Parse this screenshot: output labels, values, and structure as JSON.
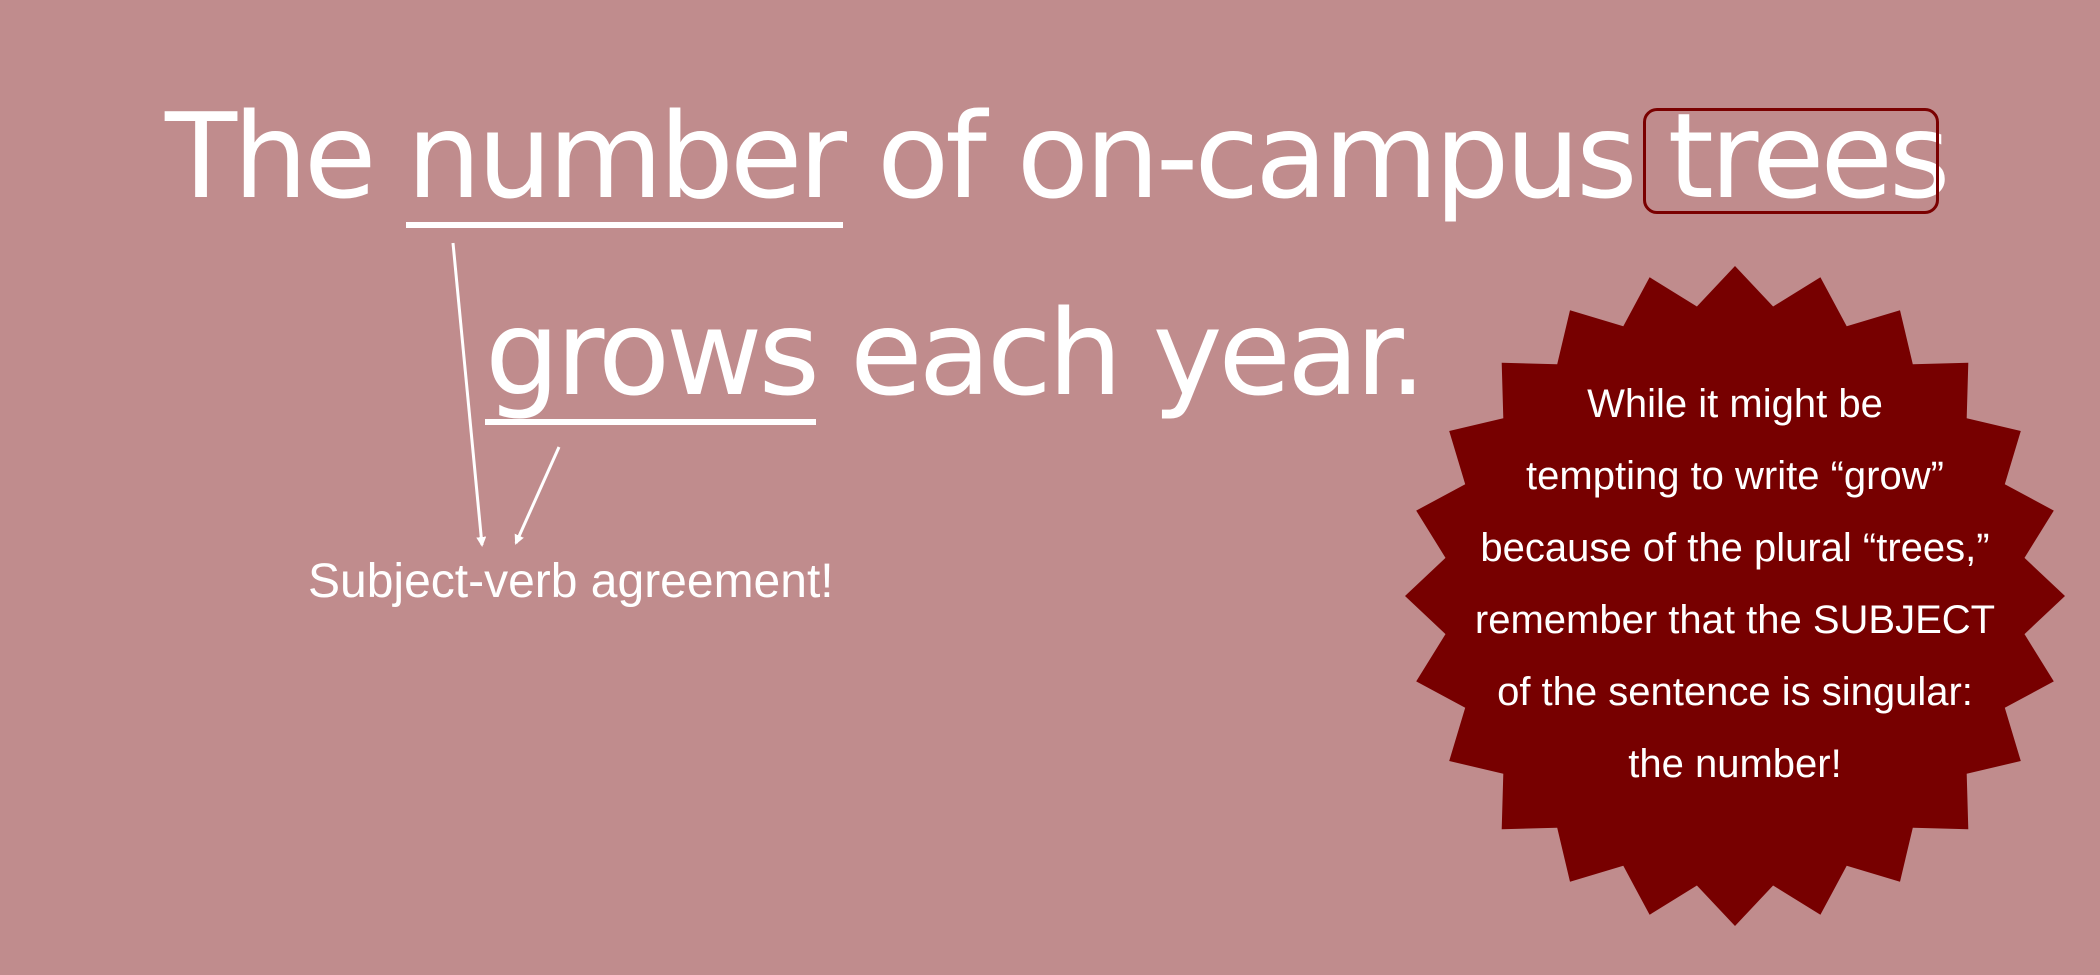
{
  "sentence": {
    "line1": {
      "w1": "The",
      "w2": "number",
      "w3": "of",
      "w4": "on-campus",
      "w5": "trees"
    },
    "line2": {
      "w1": "grows",
      "w2": "each",
      "w3": "year."
    }
  },
  "annotation": {
    "label": "Subject-verb agreement!"
  },
  "callout": {
    "lines": [
      "While it might be",
      "tempting to write “grow”",
      "because of the plural “trees,”",
      "remember that the SUBJECT",
      "of the sentence is singular:",
      "the number!"
    ]
  },
  "colors": {
    "background": "#c08c8d",
    "burst": "#770000",
    "box_border": "#7a0000",
    "text": "#ffffff"
  }
}
